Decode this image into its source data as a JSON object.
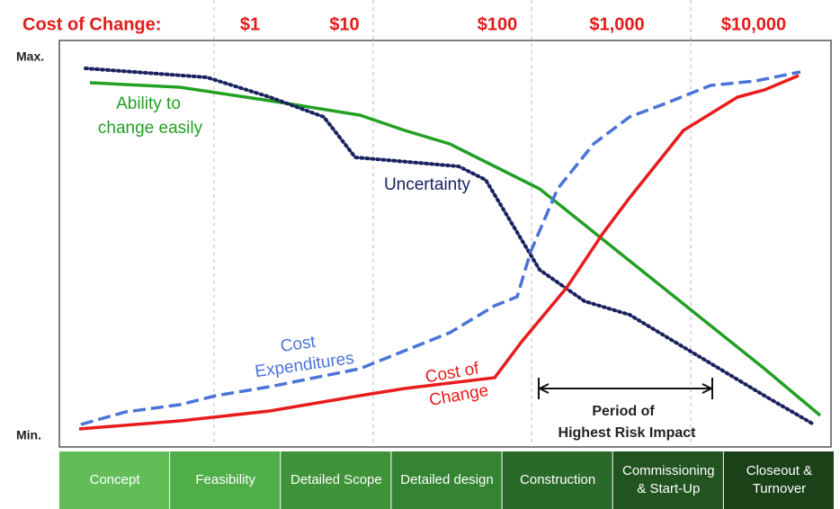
{
  "header": {
    "title": "Cost of Change:",
    "costs": [
      "$1",
      "$10",
      "$100",
      "$1,000",
      "$10,000"
    ]
  },
  "axis": {
    "max": "Max.",
    "min": "Min."
  },
  "curves": {
    "ability": [
      "Ability to",
      "change easily"
    ],
    "uncertainty": [
      "Uncertainty"
    ],
    "expenditures": [
      "Cost",
      "Expenditures"
    ],
    "cost_of_change": [
      "Cost of",
      "Change"
    ]
  },
  "annotation": [
    "Period of",
    "Highest Risk Impact"
  ],
  "phases": [
    [
      "Concept"
    ],
    [
      "Feasibility"
    ],
    [
      "Detailed Scope"
    ],
    [
      "Detailed design"
    ],
    [
      "Construction"
    ],
    [
      "Commissioning",
      "& Start-Up"
    ],
    [
      "Closeout &",
      "Turnover"
    ]
  ]
}
